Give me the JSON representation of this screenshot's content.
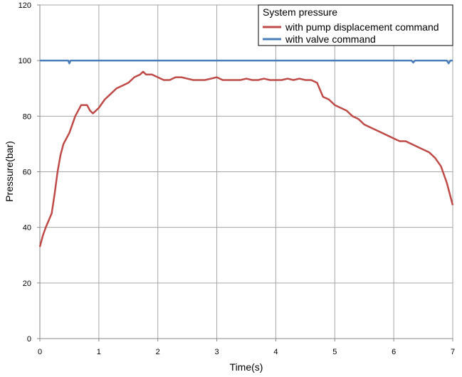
{
  "chart_data": {
    "type": "line",
    "xlabel": "Time(s)",
    "ylabel": "Pressure(bar)",
    "legend_title": "System pressure",
    "legend": "upper right",
    "grid": true,
    "xlim": [
      0,
      7
    ],
    "xticks": [
      0,
      1,
      2,
      3,
      4,
      5,
      6,
      7
    ],
    "ylim": [
      0,
      120
    ],
    "yticks": [
      0,
      20,
      40,
      60,
      80,
      100,
      120
    ],
    "series": [
      {
        "name": "with pump displacement command",
        "color": "#be4b48",
        "x": [
          0,
          0.05,
          0.1,
          0.2,
          0.25,
          0.3,
          0.35,
          0.4,
          0.5,
          0.6,
          0.7,
          0.8,
          0.85,
          0.9,
          1.0,
          1.1,
          1.2,
          1.3,
          1.4,
          1.5,
          1.6,
          1.7,
          1.75,
          1.8,
          1.9,
          2.0,
          2.1,
          2.2,
          2.3,
          2.4,
          2.5,
          2.6,
          2.7,
          2.8,
          2.9,
          3.0,
          3.1,
          3.2,
          3.3,
          3.4,
          3.5,
          3.6,
          3.7,
          3.8,
          3.9,
          4.0,
          4.1,
          4.2,
          4.3,
          4.4,
          4.5,
          4.6,
          4.7,
          4.8,
          4.9,
          5.0,
          5.1,
          5.2,
          5.3,
          5.4,
          5.5,
          5.6,
          5.7,
          5.8,
          5.9,
          6.0,
          6.1,
          6.2,
          6.3,
          6.4,
          6.5,
          6.6,
          6.7,
          6.8,
          6.9,
          7.0
        ],
        "values": [
          33,
          37,
          40,
          45,
          52,
          60,
          66,
          70,
          74,
          80,
          84,
          84,
          82,
          81,
          83,
          86,
          88,
          90,
          91,
          92,
          94,
          95,
          96,
          95,
          95,
          94,
          93,
          93,
          94,
          94,
          93.5,
          93,
          93,
          93,
          93.5,
          94,
          93,
          93,
          93,
          93,
          93.5,
          93,
          93,
          93.5,
          93,
          93,
          93,
          93.5,
          93,
          93.5,
          93,
          93,
          92,
          87,
          86,
          84,
          83,
          82,
          80,
          79,
          77,
          76,
          75,
          74,
          73,
          72,
          71,
          71,
          70,
          69,
          68,
          67,
          65,
          62,
          56,
          48
        ]
      },
      {
        "name": "with valve command",
        "color": "#4a7ebb",
        "x": [
          0,
          0.48,
          0.5,
          0.52,
          6.3,
          6.33,
          6.36,
          6.9,
          6.93,
          6.96,
          7
        ],
        "values": [
          100,
          100,
          99,
          100,
          100,
          99.3,
          100,
          100,
          99,
          100,
          100
        ]
      }
    ]
  }
}
